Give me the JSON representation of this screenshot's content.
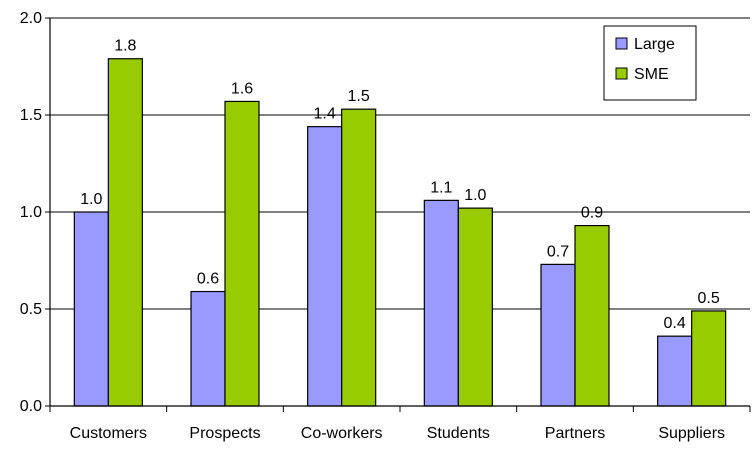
{
  "chart_data": {
    "type": "bar",
    "title": "",
    "xlabel": "",
    "ylabel": "",
    "ylim": [
      0,
      2.0
    ],
    "yticks": [
      0.0,
      0.5,
      1.0,
      1.5,
      2.0
    ],
    "ytick_labels": [
      "0.0",
      "0.5",
      "1.0",
      "1.5",
      "2.0"
    ],
    "grid": "horizontal",
    "legend_position": "top-right",
    "categories": [
      "Customers",
      "Prospects",
      "Co-workers",
      "Students",
      "Partners",
      "Suppliers"
    ],
    "series": [
      {
        "name": "Large",
        "color": "#9999FF",
        "values": [
          1.0,
          0.59,
          1.44,
          1.06,
          0.73,
          0.36
        ],
        "labels": [
          "1.0",
          "0.6",
          "1.4",
          "1.1",
          "0.7",
          "0.4"
        ]
      },
      {
        "name": "SME",
        "color": "#99CC00",
        "values": [
          1.79,
          1.57,
          1.53,
          1.02,
          0.93,
          0.49
        ],
        "labels": [
          "1.8",
          "1.6",
          "1.5",
          "1.0",
          "0.9",
          "0.5"
        ]
      }
    ]
  }
}
